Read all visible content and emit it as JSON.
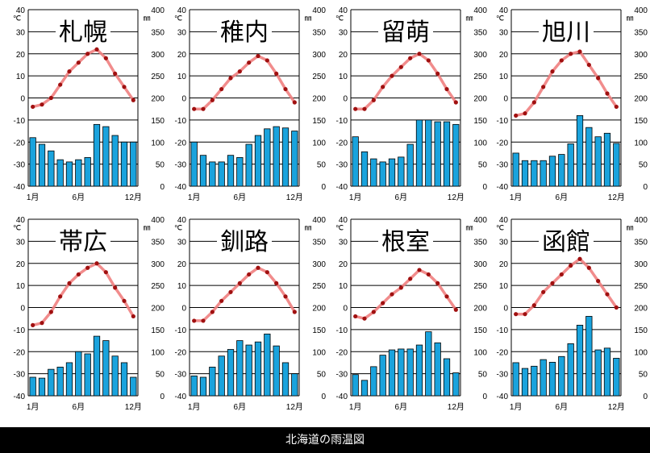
{
  "caption": "北海道の雨温図",
  "axes": {
    "temp_ticks": [
      "40",
      "30",
      "20",
      "10",
      "0",
      "-10",
      "-20",
      "-30",
      "-40"
    ],
    "precip_ticks": [
      "400",
      "350",
      "300",
      "250",
      "200",
      "150",
      "100",
      "50",
      "0"
    ],
    "temp_unit": "℃",
    "precip_unit": "㎜",
    "x_labels": [
      "1月",
      "6月",
      "12月"
    ],
    "temp_range": [
      -40,
      40
    ],
    "precip_range": [
      0,
      400
    ]
  },
  "colors": {
    "bar_fill": "#1aa3dd",
    "bar_stroke": "#000000",
    "line": "#f08080",
    "marker": "#a01010"
  },
  "chart_data": [
    {
      "type": "bar+line",
      "title": "札幌",
      "months": [
        1,
        2,
        3,
        4,
        5,
        6,
        7,
        8,
        9,
        10,
        11,
        12
      ],
      "temperature": [
        -4,
        -3,
        0,
        6,
        12,
        16,
        20,
        22,
        18,
        11,
        5,
        -1
      ],
      "precipitation": [
        110,
        95,
        80,
        60,
        55,
        60,
        65,
        140,
        135,
        115,
        100,
        100
      ]
    },
    {
      "type": "bar+line",
      "title": "稚内",
      "months": [
        1,
        2,
        3,
        4,
        5,
        6,
        7,
        8,
        9,
        10,
        11,
        12
      ],
      "temperature": [
        -5,
        -5,
        -1,
        4,
        9,
        12,
        16,
        19,
        17,
        11,
        4,
        -2
      ],
      "precipitation": [
        100,
        70,
        55,
        55,
        70,
        65,
        95,
        115,
        130,
        135,
        132,
        125
      ]
    },
    {
      "type": "bar+line",
      "title": "留萌",
      "months": [
        1,
        2,
        3,
        4,
        5,
        6,
        7,
        8,
        9,
        10,
        11,
        12
      ],
      "temperature": [
        -5,
        -5,
        -1,
        5,
        10,
        14,
        18,
        20,
        17,
        11,
        4,
        -2
      ],
      "precipitation": [
        112,
        78,
        62,
        55,
        62,
        66,
        95,
        150,
        150,
        146,
        146,
        140
      ]
    },
    {
      "type": "bar+line",
      "title": "旭川",
      "months": [
        1,
        2,
        3,
        4,
        5,
        6,
        7,
        8,
        9,
        10,
        11,
        12
      ],
      "temperature": [
        -8,
        -7,
        -2,
        5,
        12,
        17,
        20,
        21,
        15,
        9,
        2,
        -4
      ],
      "precipitation": [
        75,
        58,
        58,
        58,
        68,
        72,
        96,
        160,
        133,
        112,
        120,
        97
      ]
    },
    {
      "type": "bar+line",
      "title": "帯広",
      "months": [
        1,
        2,
        3,
        4,
        5,
        6,
        7,
        8,
        9,
        10,
        11,
        12
      ],
      "temperature": [
        -8,
        -7,
        -2,
        5,
        11,
        15,
        18,
        20,
        16,
        9,
        3,
        -4
      ],
      "precipitation": [
        42,
        40,
        60,
        65,
        75,
        100,
        95,
        135,
        125,
        90,
        75,
        42
      ]
    },
    {
      "type": "bar+line",
      "title": "釧路",
      "months": [
        1,
        2,
        3,
        4,
        5,
        6,
        7,
        8,
        9,
        10,
        11,
        12
      ],
      "temperature": [
        -6,
        -6,
        -2,
        3,
        7,
        11,
        15,
        18,
        16,
        11,
        5,
        -2
      ],
      "precipitation": [
        45,
        42,
        65,
        90,
        105,
        125,
        115,
        122,
        140,
        113,
        75,
        50
      ]
    },
    {
      "type": "bar+line",
      "title": "根室",
      "months": [
        1,
        2,
        3,
        4,
        5,
        6,
        7,
        8,
        9,
        10,
        11,
        12
      ],
      "temperature": [
        -4,
        -5,
        -2,
        2,
        6,
        9,
        13,
        17,
        15,
        11,
        5,
        -1
      ],
      "precipitation": [
        48,
        35,
        66,
        92,
        104,
        106,
        106,
        115,
        145,
        120,
        84,
        52
      ]
    },
    {
      "type": "bar+line",
      "title": "函館",
      "months": [
        1,
        2,
        3,
        4,
        5,
        6,
        7,
        8,
        9,
        10,
        11,
        12
      ],
      "temperature": [
        -3,
        -3,
        1,
        7,
        11,
        15,
        19,
        22,
        18,
        12,
        6,
        0
      ],
      "precipitation": [
        75,
        62,
        67,
        82,
        76,
        89,
        118,
        160,
        180,
        104,
        108,
        85
      ]
    }
  ]
}
